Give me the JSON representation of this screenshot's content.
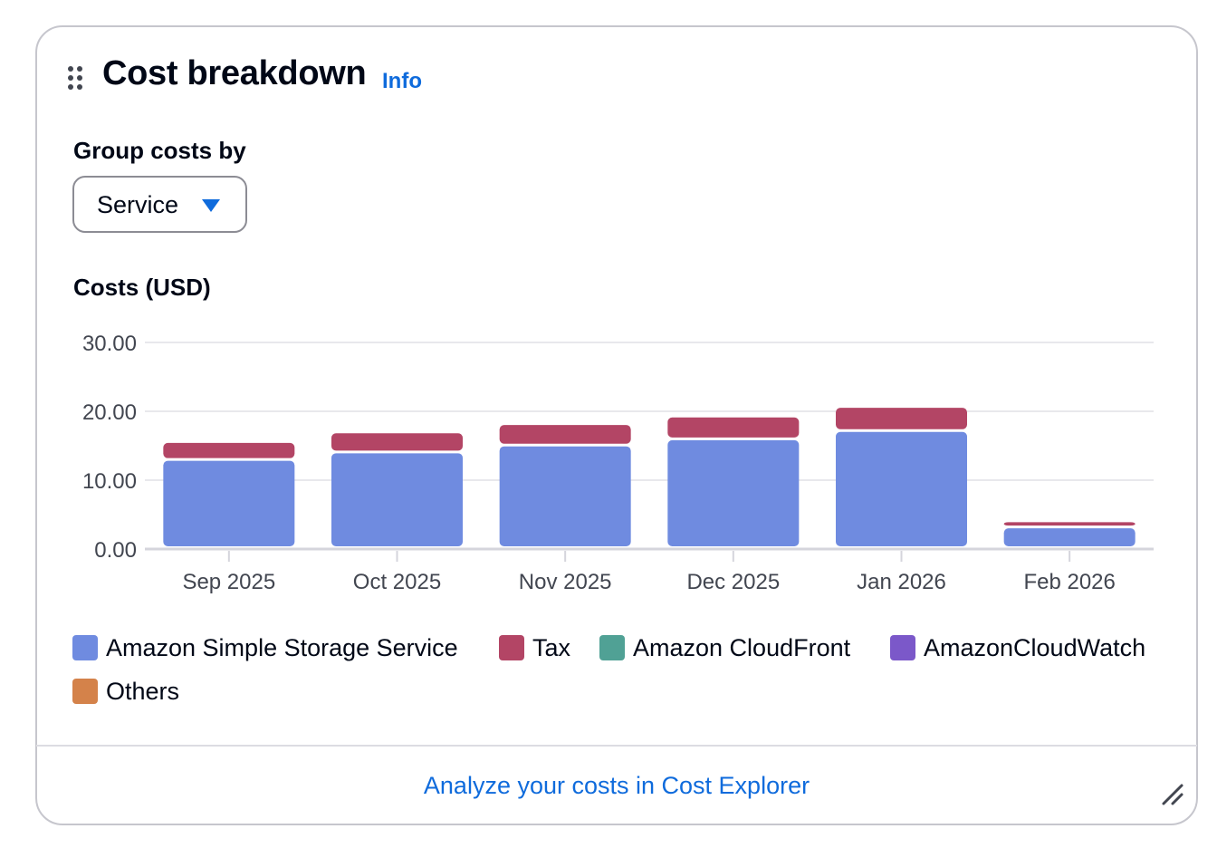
{
  "widget": {
    "title": "Cost breakdown",
    "info_label": "Info",
    "group_by_label": "Group costs by",
    "group_by_value": "Service",
    "footer_link": "Analyze your costs in Cost Explorer"
  },
  "colors": {
    "s3": "#6f8be0",
    "tax": "#b34565",
    "cloudfront": "#50a195",
    "cloudwatch": "#7b58c9",
    "others": "#d4824a",
    "link": "#0f6bdc"
  },
  "icons": {
    "drag": "drag-handle-icon",
    "dropdown": "caret-down-icon",
    "resize": "resize-handle-icon"
  },
  "chart_data": {
    "type": "bar",
    "stacked": true,
    "ylabel": "Costs (USD)",
    "ylim": [
      0,
      30
    ],
    "yticks": [
      "0.00",
      "10.00",
      "20.00",
      "30.00"
    ],
    "grid": true,
    "legend_position": "bottom",
    "categories": [
      "Sep 2025",
      "Oct 2025",
      "Nov 2025",
      "Dec 2025",
      "Jan 2026",
      "Feb 2026"
    ],
    "series": [
      {
        "name": "Amazon Simple Storage Service",
        "color": "#6f8be0",
        "values": [
          13.2,
          14.3,
          15.3,
          16.2,
          17.4,
          3.4
        ]
      },
      {
        "name": "Tax",
        "color": "#b34565",
        "values": [
          2.6,
          2.9,
          3.1,
          3.3,
          3.5,
          0.9
        ]
      },
      {
        "name": "Amazon CloudFront",
        "color": "#50a195",
        "values": [
          0,
          0,
          0,
          0,
          0,
          0
        ]
      },
      {
        "name": "AmazonCloudWatch",
        "color": "#7b58c9",
        "values": [
          0,
          0,
          0,
          0,
          0,
          0
        ]
      },
      {
        "name": "Others",
        "color": "#d4824a",
        "values": [
          0,
          0,
          0,
          0,
          0,
          0
        ]
      }
    ]
  }
}
